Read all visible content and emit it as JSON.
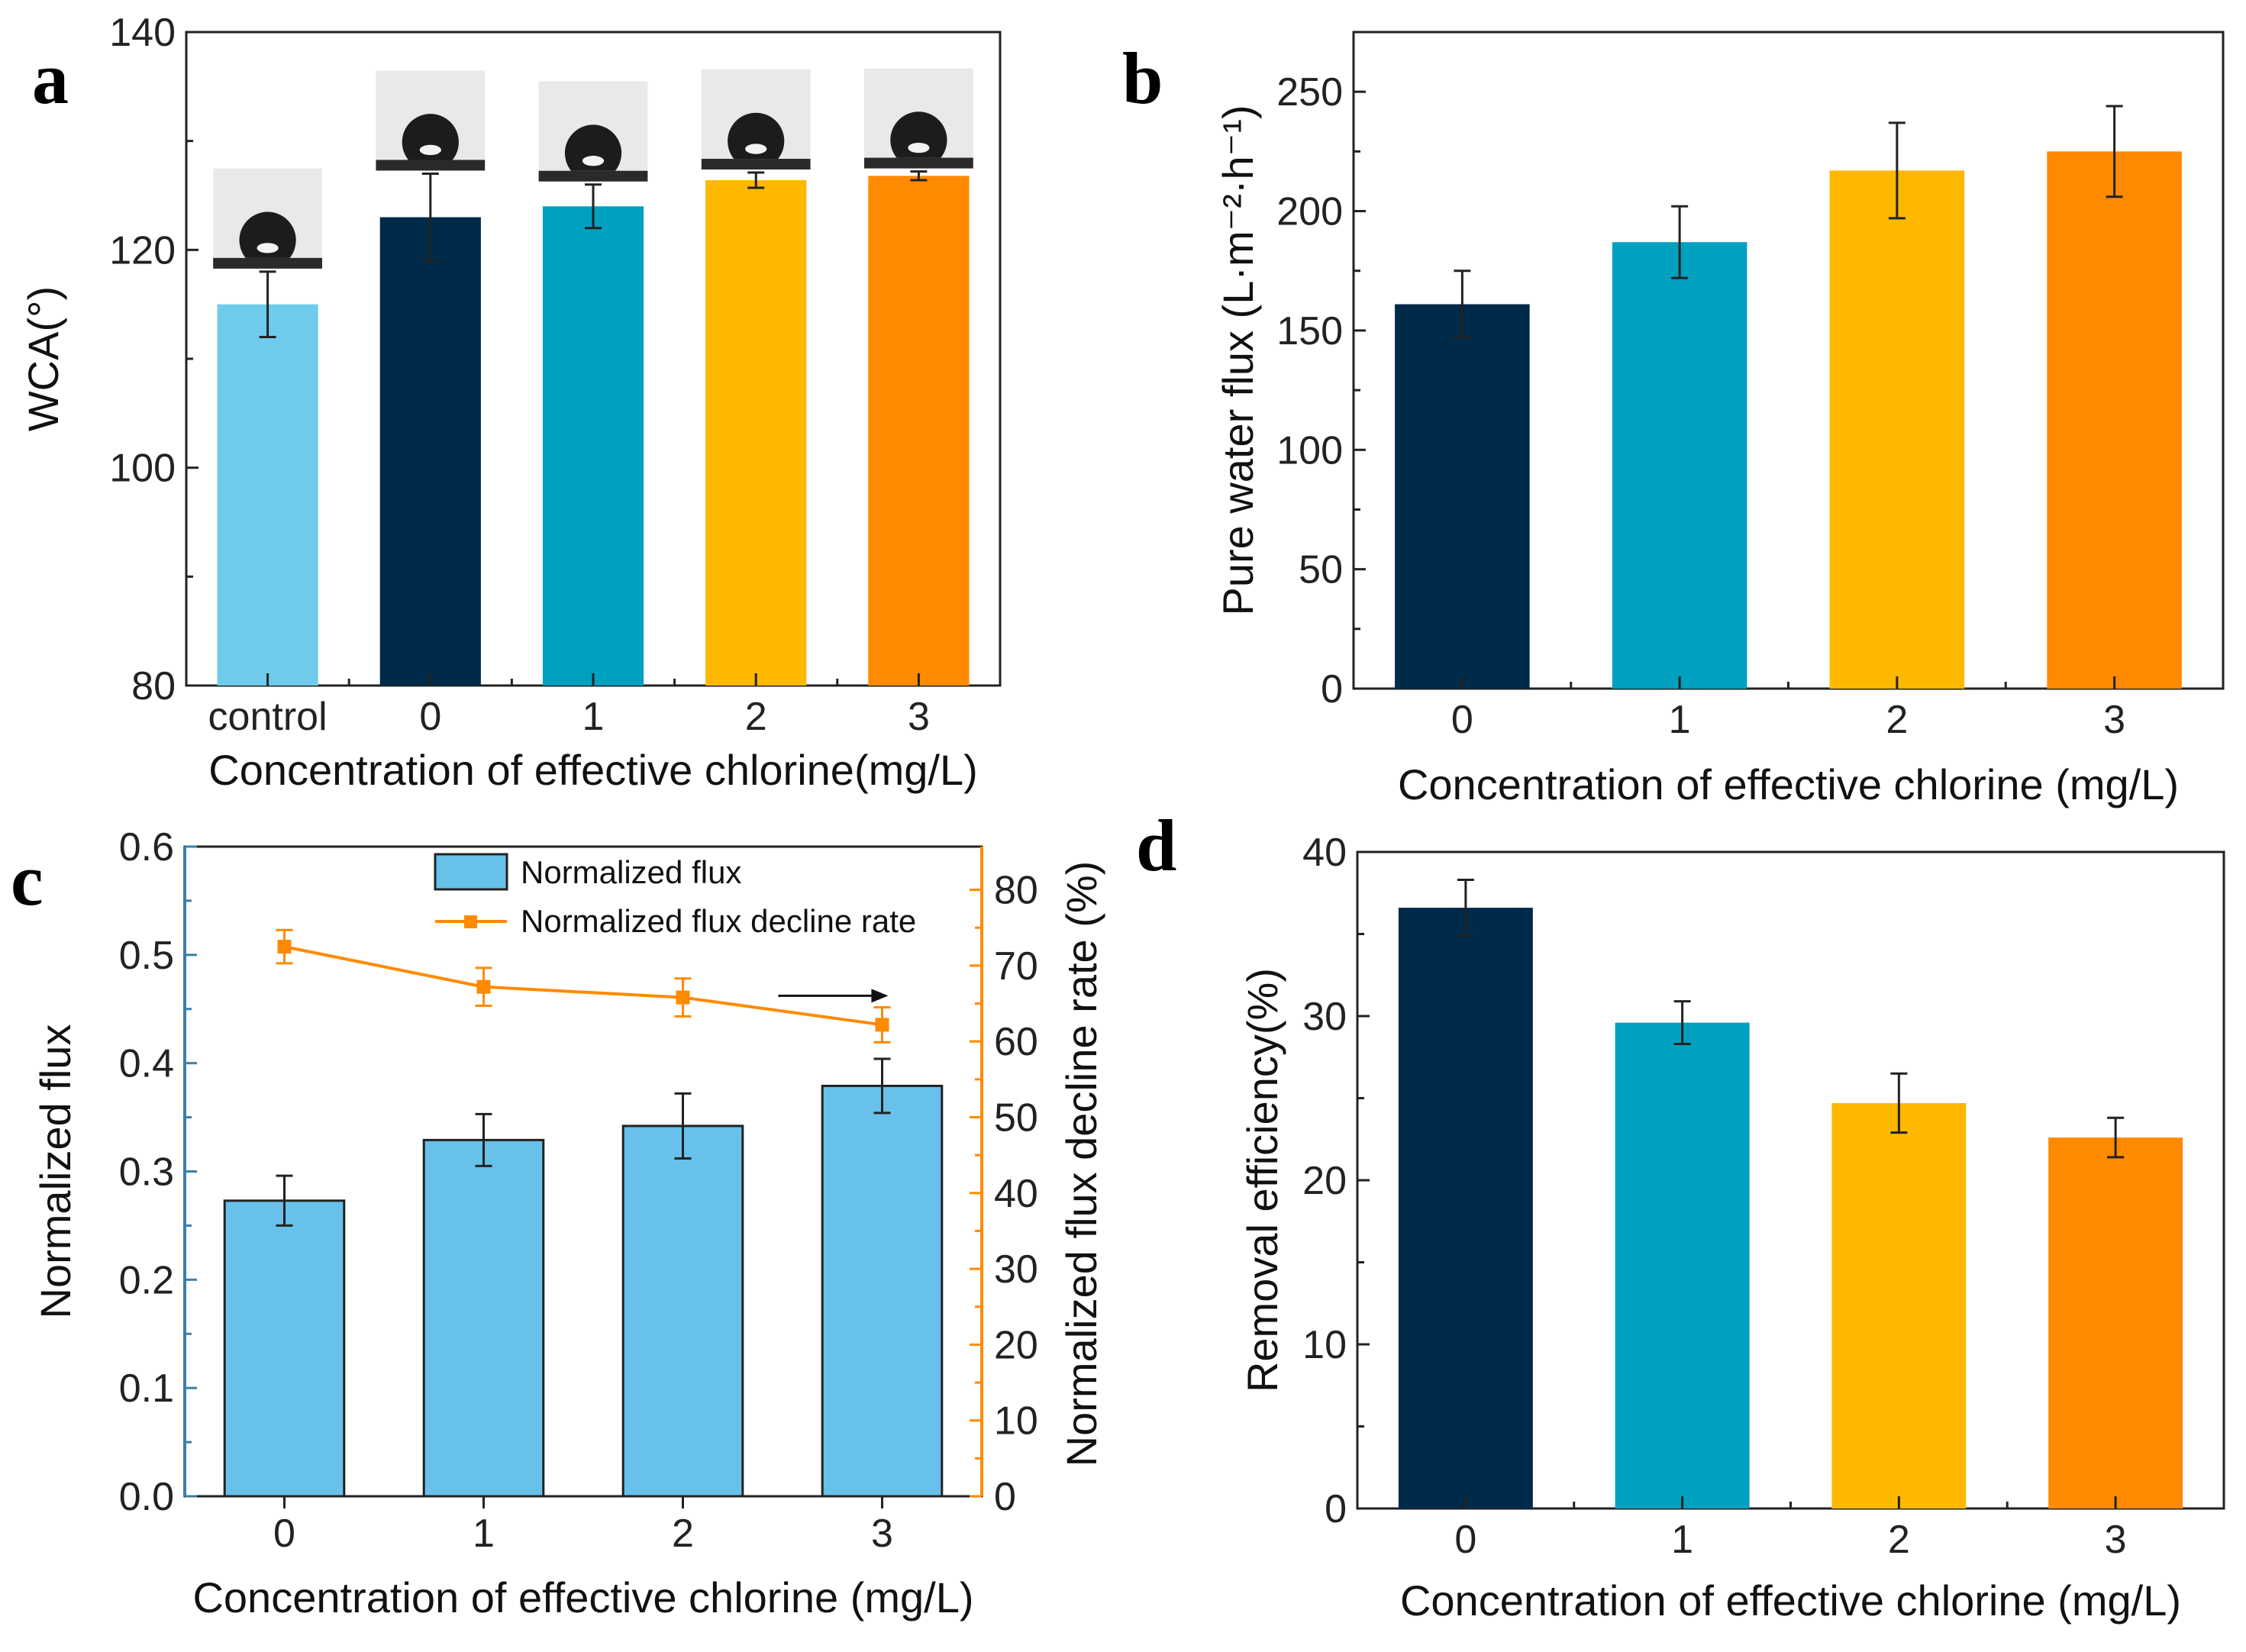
{
  "chart_data": [
    {
      "panel": "a",
      "type": "bar",
      "categories": [
        "control",
        "0",
        "1",
        "2",
        "3"
      ],
      "values": [
        115,
        123,
        124,
        126.4,
        126.8
      ],
      "errors": [
        3,
        4,
        2,
        0.7,
        0.4
      ],
      "colors": [
        "#6ecbeb",
        "#002a4a",
        "#00a0c0",
        "#ffb800",
        "#ff8a00"
      ],
      "insets": [
        "droplet",
        "droplet",
        "droplet",
        "droplet",
        "droplet"
      ],
      "xlabel": "Concentration of effective chlorine(mg/L)",
      "ylabel": "WCA(°)",
      "ylim": [
        80,
        140
      ],
      "yticks": [
        80,
        100,
        120,
        140
      ]
    },
    {
      "panel": "b",
      "type": "bar",
      "categories": [
        "0",
        "1",
        "2",
        "3"
      ],
      "values": [
        161,
        187,
        217,
        225
      ],
      "errors": [
        14,
        15,
        20,
        19
      ],
      "colors": [
        "#002a4a",
        "#00a0c0",
        "#ffb800",
        "#ff8a00"
      ],
      "xlabel": "Concentration of effective chlorine (mg/L)",
      "ylabel": "Pure water flux (L·m⁻²·h⁻¹)",
      "ylim": [
        0,
        275
      ],
      "yticks": [
        0,
        50,
        100,
        150,
        200,
        250
      ]
    },
    {
      "panel": "c",
      "type": "bar",
      "categories": [
        "0",
        "1",
        "2",
        "3"
      ],
      "series": [
        {
          "name": "Normalized flux",
          "values": [
            0.273,
            0.329,
            0.342,
            0.379
          ],
          "errors": [
            0.023,
            0.024,
            0.03,
            0.025
          ],
          "color": "#67c1ea",
          "axis": "left"
        },
        {
          "name": "Normalized flux decline rate",
          "values": [
            72.5,
            67.2,
            65.8,
            62.2
          ],
          "errors": [
            2.2,
            2.5,
            2.5,
            2.3
          ],
          "color": "#ff8a00",
          "axis": "right"
        }
      ],
      "xlabel": "Concentration of effective chlorine (mg/L)",
      "ylabel": "Normalized flux",
      "ylabel_right": "Normalized flux decline rate (%)",
      "ylim": [
        0,
        0.6
      ],
      "ylim_right": [
        0,
        85.7
      ],
      "yticks": [
        "0.0",
        "0.1",
        "0.2",
        "0.3",
        "0.4",
        "0.5",
        "0.6"
      ],
      "yticks_right": [
        0,
        10,
        20,
        30,
        40,
        50,
        60,
        70,
        80
      ],
      "left_axis_color": "#3a7fa8",
      "legend_position": "top-right"
    },
    {
      "panel": "d",
      "type": "bar",
      "categories": [
        "0",
        "1",
        "2",
        "3"
      ],
      "values": [
        36.6,
        29.6,
        24.7,
        22.6
      ],
      "errors": [
        1.7,
        1.3,
        1.8,
        1.2
      ],
      "colors": [
        "#002a4a",
        "#00a0c0",
        "#ffb800",
        "#ff8a00"
      ],
      "xlabel": "Concentration of effective chlorine (mg/L)",
      "ylabel": "Removal efficiency(%)",
      "ylim": [
        0,
        40
      ],
      "yticks": [
        0,
        10,
        20,
        30,
        40
      ]
    }
  ]
}
